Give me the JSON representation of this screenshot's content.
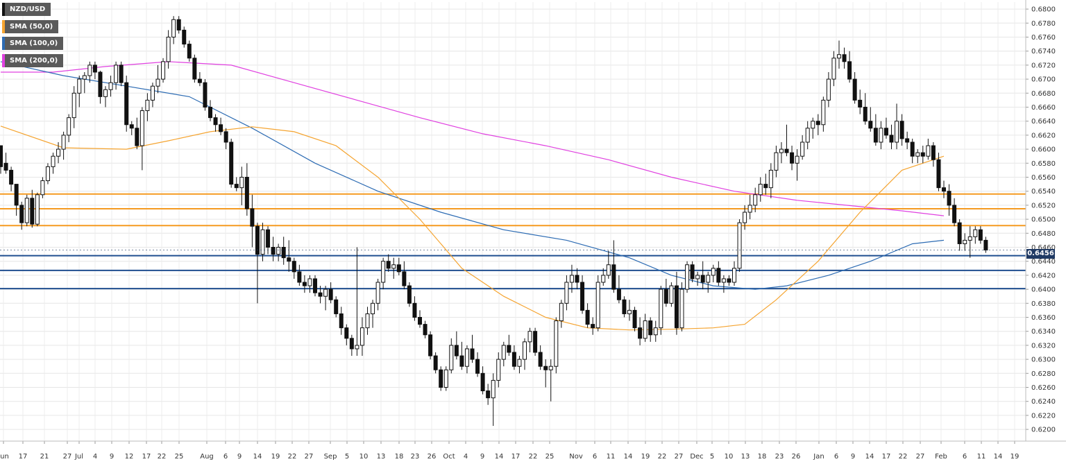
{
  "legend": [
    {
      "label": "NZD/USD",
      "color": "#111111"
    },
    {
      "label": "SMA (50,0)",
      "color": "#f5a430"
    },
    {
      "label": "SMA (100,0)",
      "color": "#2c6bb3"
    },
    {
      "label": "SMA (200,0)",
      "color": "#e040e0"
    }
  ],
  "last_price_label": "0.6456",
  "chart_data": {
    "type": "candlestick",
    "symbol": "NZD/USD",
    "ylim": [
      0.619,
      0.681
    ],
    "y_ticks": [
      "0.6800",
      "0.6780",
      "0.6760",
      "0.6740",
      "0.6720",
      "0.6700",
      "0.6680",
      "0.6660",
      "0.6640",
      "0.6620",
      "0.6600",
      "0.6580",
      "0.6560",
      "0.6540",
      "0.6520",
      "0.6500",
      "0.6480",
      "0.6460",
      "0.6440",
      "0.6420",
      "0.6400",
      "0.6380",
      "0.6360",
      "0.6340",
      "0.6320",
      "0.6300",
      "0.6280",
      "0.6260",
      "0.6240",
      "0.6220",
      "0.6200"
    ],
    "x_labels": [
      "Jun",
      "17",
      "21",
      "27",
      "Jul",
      "4",
      "9",
      "12",
      "17",
      "22",
      "25",
      "Aug",
      "6",
      "9",
      "14",
      "19",
      "22",
      "27",
      "Sep",
      "5",
      "10",
      "13",
      "18",
      "23",
      "26",
      "Oct",
      "4",
      "9",
      "14",
      "17",
      "22",
      "25",
      "Nov",
      "6",
      "11",
      "14",
      "19",
      "22",
      "27",
      "Dec",
      "5",
      "10",
      "13",
      "18",
      "23",
      "26",
      "Jan",
      "6",
      "9",
      "14",
      "17",
      "22",
      "27",
      "Feb",
      "6",
      "11",
      "14",
      "19"
    ],
    "horizontal_levels": {
      "resistance": [
        0.6536,
        0.6515,
        0.6491
      ],
      "support": [
        0.6448,
        0.6427,
        0.6401
      ],
      "resistance_color": "#f59a20",
      "support_color": "#1f4e8f"
    },
    "ohlc": [
      [
        0.6605,
        0.6605,
        0.6565,
        0.6575
      ],
      [
        0.658,
        0.6595,
        0.6565,
        0.657
      ],
      [
        0.657,
        0.6575,
        0.654,
        0.655
      ],
      [
        0.655,
        0.655,
        0.6505,
        0.652
      ],
      [
        0.652,
        0.6525,
        0.6485,
        0.6495
      ],
      [
        0.6495,
        0.6535,
        0.649,
        0.653
      ],
      [
        0.653,
        0.6542,
        0.6488,
        0.6493
      ],
      [
        0.6493,
        0.6538,
        0.649,
        0.6535
      ],
      [
        0.6535,
        0.656,
        0.653,
        0.6555
      ],
      [
        0.6555,
        0.658,
        0.655,
        0.6575
      ],
      [
        0.6575,
        0.6595,
        0.6565,
        0.659
      ],
      [
        0.659,
        0.661,
        0.658,
        0.66
      ],
      [
        0.66,
        0.6625,
        0.6585,
        0.662
      ],
      [
        0.662,
        0.665,
        0.661,
        0.6645
      ],
      [
        0.6645,
        0.669,
        0.663,
        0.668
      ],
      [
        0.668,
        0.6705,
        0.666,
        0.67
      ],
      [
        0.67,
        0.671,
        0.668,
        0.6705
      ],
      [
        0.6705,
        0.6725,
        0.6695,
        0.672
      ],
      [
        0.672,
        0.6725,
        0.67,
        0.671
      ],
      [
        0.671,
        0.6712,
        0.6665,
        0.6675
      ],
      [
        0.6675,
        0.669,
        0.666,
        0.6685
      ],
      [
        0.6685,
        0.6705,
        0.6675,
        0.6695
      ],
      [
        0.6695,
        0.6725,
        0.6685,
        0.672
      ],
      [
        0.672,
        0.6725,
        0.669,
        0.6695
      ],
      [
        0.6695,
        0.6705,
        0.6625,
        0.6635
      ],
      [
        0.6635,
        0.664,
        0.662,
        0.663
      ],
      [
        0.663,
        0.6645,
        0.66,
        0.6605
      ],
      [
        0.6605,
        0.666,
        0.657,
        0.6655
      ],
      [
        0.6655,
        0.668,
        0.664,
        0.667
      ],
      [
        0.667,
        0.6695,
        0.666,
        0.669
      ],
      [
        0.669,
        0.672,
        0.668,
        0.67
      ],
      [
        0.67,
        0.673,
        0.6695,
        0.6725
      ],
      [
        0.6725,
        0.677,
        0.6715,
        0.676
      ],
      [
        0.676,
        0.679,
        0.675,
        0.6785
      ],
      [
        0.6785,
        0.679,
        0.6765,
        0.677
      ],
      [
        0.677,
        0.6775,
        0.6745,
        0.675
      ],
      [
        0.675,
        0.6755,
        0.6725,
        0.673
      ],
      [
        0.673,
        0.6735,
        0.6695,
        0.67
      ],
      [
        0.67,
        0.671,
        0.669,
        0.6695
      ],
      [
        0.6695,
        0.67,
        0.6655,
        0.666
      ],
      [
        0.666,
        0.667,
        0.664,
        0.6645
      ],
      [
        0.6645,
        0.665,
        0.6625,
        0.6635
      ],
      [
        0.6635,
        0.6645,
        0.662,
        0.6625
      ],
      [
        0.6625,
        0.663,
        0.66,
        0.661
      ],
      [
        0.661,
        0.6615,
        0.6545,
        0.655
      ],
      [
        0.655,
        0.656,
        0.654,
        0.6545
      ],
      [
        0.6545,
        0.6575,
        0.652,
        0.656
      ],
      [
        0.656,
        0.658,
        0.6505,
        0.6515
      ],
      [
        0.6515,
        0.6535,
        0.646,
        0.649
      ],
      [
        0.649,
        0.6495,
        0.638,
        0.645
      ],
      [
        0.645,
        0.6495,
        0.644,
        0.6485
      ],
      [
        0.6485,
        0.649,
        0.645,
        0.646
      ],
      [
        0.646,
        0.6475,
        0.644,
        0.645
      ],
      [
        0.645,
        0.6465,
        0.644,
        0.646
      ],
      [
        0.646,
        0.6475,
        0.6435,
        0.6445
      ],
      [
        0.6445,
        0.647,
        0.6425,
        0.644
      ],
      [
        0.644,
        0.6445,
        0.6415,
        0.6425
      ],
      [
        0.6425,
        0.6435,
        0.6405,
        0.641
      ],
      [
        0.641,
        0.642,
        0.6395,
        0.6405
      ],
      [
        0.6405,
        0.642,
        0.6395,
        0.6415
      ],
      [
        0.6415,
        0.642,
        0.639,
        0.6395
      ],
      [
        0.6395,
        0.6405,
        0.638,
        0.639
      ],
      [
        0.639,
        0.6405,
        0.637,
        0.64
      ],
      [
        0.64,
        0.641,
        0.638,
        0.6385
      ],
      [
        0.6385,
        0.639,
        0.636,
        0.6365
      ],
      [
        0.6365,
        0.6375,
        0.6335,
        0.6345
      ],
      [
        0.6345,
        0.635,
        0.632,
        0.633
      ],
      [
        0.633,
        0.6335,
        0.6305,
        0.6315
      ],
      [
        0.6315,
        0.646,
        0.6305,
        0.632
      ],
      [
        0.632,
        0.636,
        0.6305,
        0.6345
      ],
      [
        0.6345,
        0.6375,
        0.6335,
        0.6365
      ],
      [
        0.6365,
        0.6385,
        0.6345,
        0.638
      ],
      [
        0.638,
        0.6415,
        0.637,
        0.641
      ],
      [
        0.641,
        0.6445,
        0.64,
        0.644
      ],
      [
        0.644,
        0.645,
        0.6425,
        0.643
      ],
      [
        0.643,
        0.6445,
        0.6415,
        0.6435
      ],
      [
        0.6435,
        0.6445,
        0.642,
        0.6425
      ],
      [
        0.6425,
        0.644,
        0.64,
        0.6405
      ],
      [
        0.6405,
        0.641,
        0.6375,
        0.638
      ],
      [
        0.638,
        0.639,
        0.6355,
        0.636
      ],
      [
        0.636,
        0.637,
        0.6345,
        0.635
      ],
      [
        0.635,
        0.6355,
        0.633,
        0.6335
      ],
      [
        0.6335,
        0.634,
        0.63,
        0.6305
      ],
      [
        0.6305,
        0.631,
        0.628,
        0.6285
      ],
      [
        0.6285,
        0.629,
        0.6255,
        0.626
      ],
      [
        0.626,
        0.629,
        0.6255,
        0.6285
      ],
      [
        0.6285,
        0.633,
        0.628,
        0.632
      ],
      [
        0.632,
        0.634,
        0.63,
        0.6305
      ],
      [
        0.6305,
        0.6325,
        0.6285,
        0.629
      ],
      [
        0.629,
        0.632,
        0.628,
        0.6315
      ],
      [
        0.6315,
        0.6335,
        0.6295,
        0.63
      ],
      [
        0.63,
        0.631,
        0.6275,
        0.628
      ],
      [
        0.628,
        0.629,
        0.625,
        0.6255
      ],
      [
        0.6255,
        0.6265,
        0.6235,
        0.6245
      ],
      [
        0.6245,
        0.628,
        0.6205,
        0.627
      ],
      [
        0.627,
        0.631,
        0.626,
        0.63
      ],
      [
        0.63,
        0.6325,
        0.629,
        0.632
      ],
      [
        0.632,
        0.6335,
        0.6305,
        0.631
      ],
      [
        0.631,
        0.632,
        0.6285,
        0.629
      ],
      [
        0.629,
        0.6305,
        0.628,
        0.63
      ],
      [
        0.63,
        0.633,
        0.6285,
        0.6325
      ],
      [
        0.6325,
        0.6345,
        0.631,
        0.634
      ],
      [
        0.634,
        0.6345,
        0.6305,
        0.631
      ],
      [
        0.631,
        0.632,
        0.6285,
        0.629
      ],
      [
        0.629,
        0.63,
        0.626,
        0.6285
      ],
      [
        0.6285,
        0.63,
        0.624,
        0.629
      ],
      [
        0.629,
        0.636,
        0.628,
        0.6355
      ],
      [
        0.6355,
        0.6385,
        0.6345,
        0.638
      ],
      [
        0.638,
        0.642,
        0.637,
        0.641
      ],
      [
        0.641,
        0.6435,
        0.6395,
        0.642
      ],
      [
        0.642,
        0.643,
        0.64,
        0.641
      ],
      [
        0.641,
        0.642,
        0.6365,
        0.637
      ],
      [
        0.637,
        0.638,
        0.6345,
        0.635
      ],
      [
        0.635,
        0.636,
        0.6335,
        0.6345
      ],
      [
        0.6345,
        0.642,
        0.634,
        0.641
      ],
      [
        0.641,
        0.643,
        0.6405,
        0.642
      ],
      [
        0.642,
        0.6455,
        0.6415,
        0.6435
      ],
      [
        0.6435,
        0.647,
        0.6395,
        0.64
      ],
      [
        0.64,
        0.642,
        0.638,
        0.6385
      ],
      [
        0.6385,
        0.639,
        0.636,
        0.6365
      ],
      [
        0.6365,
        0.6385,
        0.6355,
        0.637
      ],
      [
        0.637,
        0.6375,
        0.634,
        0.6345
      ],
      [
        0.6345,
        0.636,
        0.632,
        0.633
      ],
      [
        0.633,
        0.6365,
        0.6325,
        0.6355
      ],
      [
        0.6355,
        0.636,
        0.6325,
        0.6335
      ],
      [
        0.6335,
        0.6355,
        0.6325,
        0.6345
      ],
      [
        0.6345,
        0.6405,
        0.6335,
        0.64
      ],
      [
        0.64,
        0.6415,
        0.6375,
        0.638
      ],
      [
        0.638,
        0.641,
        0.6375,
        0.6405
      ],
      [
        0.6405,
        0.6425,
        0.6335,
        0.6345
      ],
      [
        0.6345,
        0.641,
        0.634,
        0.64
      ],
      [
        0.64,
        0.644,
        0.6395,
        0.6435
      ],
      [
        0.6435,
        0.644,
        0.641,
        0.6415
      ],
      [
        0.6415,
        0.6425,
        0.6405,
        0.642
      ],
      [
        0.642,
        0.644,
        0.64,
        0.641
      ],
      [
        0.641,
        0.6425,
        0.6395,
        0.642
      ],
      [
        0.642,
        0.6435,
        0.641,
        0.643
      ],
      [
        0.643,
        0.644,
        0.6405,
        0.641
      ],
      [
        0.641,
        0.642,
        0.6395,
        0.6415
      ],
      [
        0.6415,
        0.642,
        0.6405,
        0.641
      ],
      [
        0.641,
        0.644,
        0.6405,
        0.643
      ],
      [
        0.643,
        0.65,
        0.6425,
        0.6495
      ],
      [
        0.6495,
        0.652,
        0.6485,
        0.651
      ],
      [
        0.651,
        0.6535,
        0.65,
        0.652
      ],
      [
        0.652,
        0.6545,
        0.651,
        0.6535
      ],
      [
        0.6535,
        0.656,
        0.6525,
        0.655
      ],
      [
        0.655,
        0.6565,
        0.6535,
        0.6545
      ],
      [
        0.6545,
        0.658,
        0.653,
        0.657
      ],
      [
        0.657,
        0.6605,
        0.656,
        0.6595
      ],
      [
        0.6595,
        0.661,
        0.658,
        0.66
      ],
      [
        0.66,
        0.6635,
        0.659,
        0.6595
      ],
      [
        0.6595,
        0.6605,
        0.657,
        0.658
      ],
      [
        0.658,
        0.66,
        0.6555,
        0.659
      ],
      [
        0.659,
        0.662,
        0.6585,
        0.661
      ],
      [
        0.661,
        0.664,
        0.66,
        0.663
      ],
      [
        0.663,
        0.6645,
        0.6615,
        0.664
      ],
      [
        0.664,
        0.665,
        0.662,
        0.6635
      ],
      [
        0.6635,
        0.6675,
        0.6625,
        0.667
      ],
      [
        0.667,
        0.671,
        0.666,
        0.67
      ],
      [
        0.67,
        0.674,
        0.669,
        0.673
      ],
      [
        0.673,
        0.6755,
        0.6715,
        0.6735
      ],
      [
        0.6735,
        0.6745,
        0.6715,
        0.6725
      ],
      [
        0.6725,
        0.674,
        0.6695,
        0.67
      ],
      [
        0.67,
        0.671,
        0.6665,
        0.667
      ],
      [
        0.667,
        0.6685,
        0.665,
        0.666
      ],
      [
        0.666,
        0.668,
        0.6635,
        0.664
      ],
      [
        0.664,
        0.666,
        0.6625,
        0.663
      ],
      [
        0.663,
        0.665,
        0.6605,
        0.661
      ],
      [
        0.661,
        0.664,
        0.66,
        0.663
      ],
      [
        0.663,
        0.6645,
        0.6615,
        0.662
      ],
      [
        0.662,
        0.6635,
        0.66,
        0.661
      ],
      [
        0.661,
        0.6665,
        0.66,
        0.664
      ],
      [
        0.664,
        0.665,
        0.6605,
        0.6615
      ],
      [
        0.6615,
        0.6625,
        0.66,
        0.661
      ],
      [
        0.661,
        0.6615,
        0.658,
        0.659
      ],
      [
        0.659,
        0.66,
        0.658,
        0.6595
      ],
      [
        0.6595,
        0.6605,
        0.658,
        0.659
      ],
      [
        0.659,
        0.6615,
        0.6585,
        0.6605
      ],
      [
        0.6605,
        0.661,
        0.6575,
        0.6585
      ],
      [
        0.6585,
        0.6595,
        0.654,
        0.6545
      ],
      [
        0.6545,
        0.6555,
        0.653,
        0.654
      ],
      [
        0.654,
        0.655,
        0.6505,
        0.652
      ],
      [
        0.652,
        0.653,
        0.649,
        0.6495
      ],
      [
        0.6495,
        0.65,
        0.6455,
        0.6465
      ],
      [
        0.6465,
        0.648,
        0.6455,
        0.647
      ],
      [
        0.647,
        0.649,
        0.6445,
        0.6475
      ],
      [
        0.6475,
        0.649,
        0.6465,
        0.6485
      ],
      [
        0.6485,
        0.649,
        0.6465,
        0.647
      ],
      [
        0.647,
        0.6475,
        0.6452,
        0.6456
      ]
    ],
    "sma50": [
      [
        0,
        0.6633
      ],
      [
        12,
        0.6602
      ],
      [
        24,
        0.66
      ],
      [
        32,
        0.6612
      ],
      [
        40,
        0.6625
      ],
      [
        48,
        0.6632
      ],
      [
        56,
        0.6625
      ],
      [
        64,
        0.6605
      ],
      [
        72,
        0.656
      ],
      [
        80,
        0.65
      ],
      [
        88,
        0.643
      ],
      [
        96,
        0.639
      ],
      [
        104,
        0.636
      ],
      [
        112,
        0.6345
      ],
      [
        120,
        0.6342
      ],
      [
        128,
        0.6343
      ],
      [
        136,
        0.6345
      ],
      [
        142,
        0.635
      ],
      [
        148,
        0.6385
      ],
      [
        156,
        0.644
      ],
      [
        164,
        0.651
      ],
      [
        172,
        0.657
      ],
      [
        180,
        0.659
      ]
    ],
    "sma100": [
      [
        0,
        0.6725
      ],
      [
        12,
        0.6705
      ],
      [
        24,
        0.669
      ],
      [
        36,
        0.6675
      ],
      [
        48,
        0.663
      ],
      [
        60,
        0.658
      ],
      [
        72,
        0.654
      ],
      [
        84,
        0.651
      ],
      [
        96,
        0.6485
      ],
      [
        108,
        0.647
      ],
      [
        120,
        0.6445
      ],
      [
        128,
        0.642
      ],
      [
        136,
        0.6405
      ],
      [
        144,
        0.64
      ],
      [
        150,
        0.6405
      ],
      [
        158,
        0.642
      ],
      [
        166,
        0.644
      ],
      [
        174,
        0.6465
      ],
      [
        180,
        0.647
      ]
    ],
    "sma200": [
      [
        0,
        0.671
      ],
      [
        10,
        0.671
      ],
      [
        20,
        0.6718
      ],
      [
        32,
        0.6725
      ],
      [
        44,
        0.672
      ],
      [
        56,
        0.6695
      ],
      [
        68,
        0.667
      ],
      [
        80,
        0.6645
      ],
      [
        92,
        0.6622
      ],
      [
        104,
        0.6605
      ],
      [
        116,
        0.6585
      ],
      [
        128,
        0.656
      ],
      [
        140,
        0.654
      ],
      [
        152,
        0.6527
      ],
      [
        164,
        0.6518
      ],
      [
        172,
        0.6512
      ],
      [
        180,
        0.6505
      ]
    ]
  }
}
